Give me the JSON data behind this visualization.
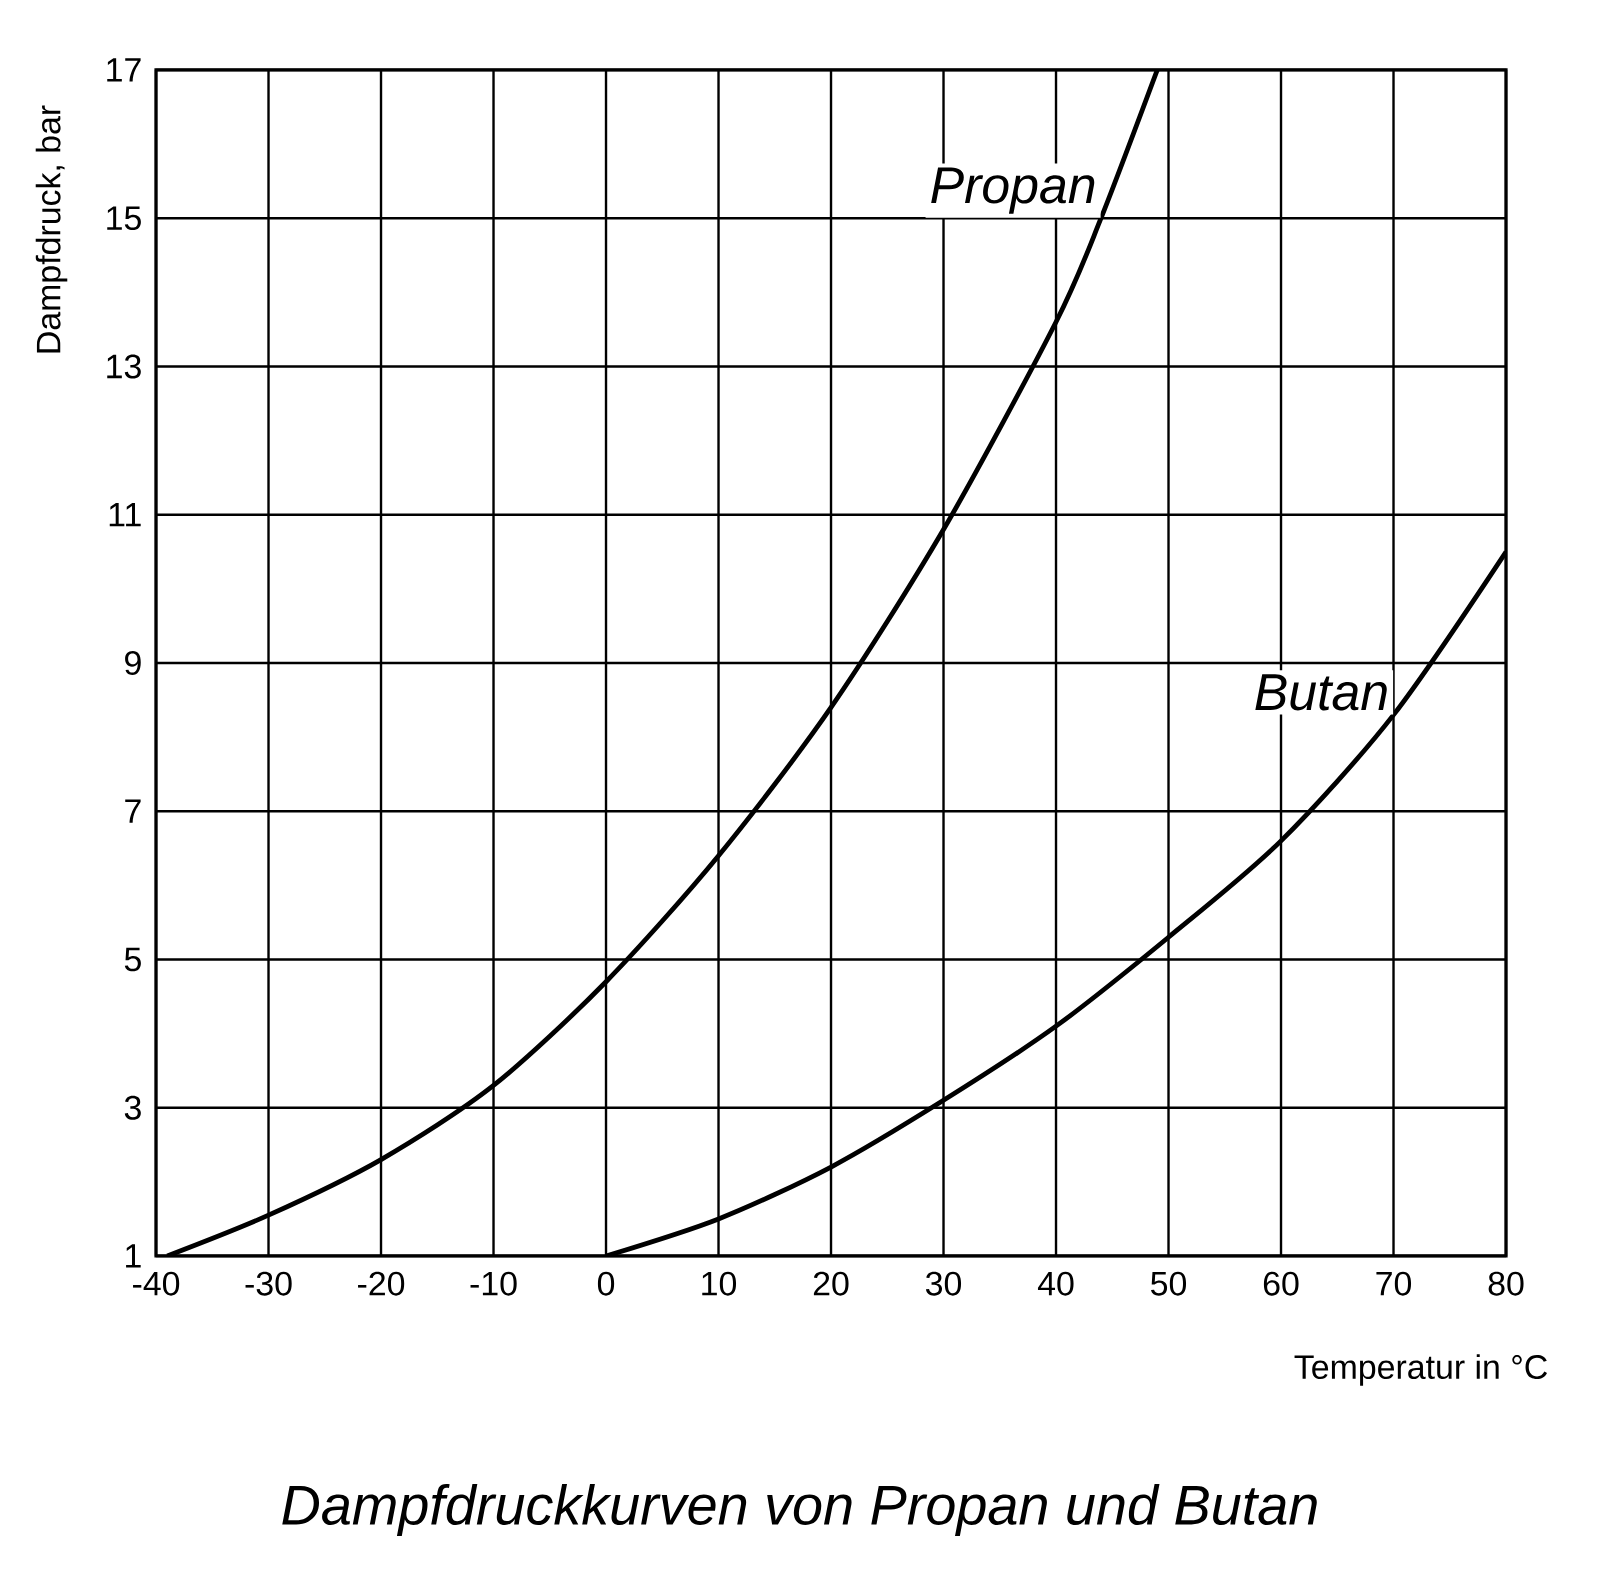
{
  "chart_data": {
    "type": "line",
    "title": "Dampfdruckkurven von Propan und Butan",
    "xlabel": "Temperatur in °C",
    "ylabel": "Dampfdruck, bar",
    "series": [
      {
        "name": "Propan",
        "color": "#000000",
        "x": [
          -39,
          -30,
          -20,
          -10,
          0,
          10,
          20,
          30,
          40,
          44,
          49
        ],
        "values": [
          1.0,
          1.55,
          2.3,
          3.3,
          4.7,
          6.4,
          8.4,
          10.8,
          13.6,
          15.0,
          17.0
        ]
      },
      {
        "name": "Butan",
        "color": "#000000",
        "x": [
          0,
          10,
          20,
          30,
          40,
          50,
          60,
          70,
          80
        ],
        "values": [
          1.0,
          1.5,
          2.2,
          3.1,
          4.1,
          5.3,
          6.6,
          8.3,
          10.5
        ]
      }
    ],
    "xlim": [
      -40,
      80
    ],
    "ylim": [
      1,
      17
    ],
    "xticks": [
      -40,
      -30,
      -20,
      -10,
      0,
      10,
      20,
      30,
      40,
      50,
      60,
      70,
      80
    ],
    "yticks": [
      1,
      3,
      5,
      7,
      9,
      11,
      13,
      15,
      17
    ],
    "grid": true,
    "marker": "none",
    "line_style": "solid"
  }
}
